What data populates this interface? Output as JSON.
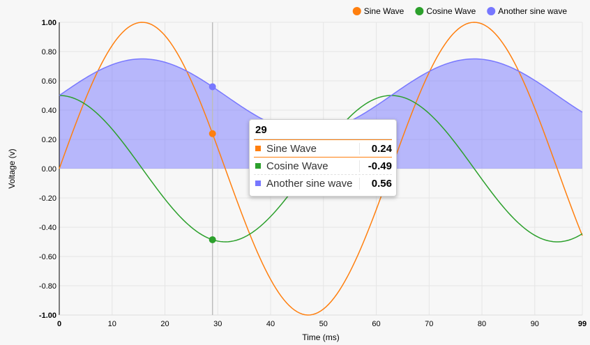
{
  "chart_data": {
    "type": "line",
    "xlabel": "Time (ms)",
    "ylabel": "Voltage (v)",
    "xlim": [
      0,
      99
    ],
    "ylim": [
      -1,
      1
    ],
    "x_ticks": [
      "0",
      "10",
      "20",
      "30",
      "40",
      "50",
      "60",
      "70",
      "80",
      "90",
      "99"
    ],
    "y_ticks": [
      "1.00",
      "0.80",
      "0.60",
      "0.40",
      "0.20",
      "0.00",
      "-0.20",
      "-0.40",
      "-0.60",
      "-0.80",
      "-1.00"
    ],
    "grid": true,
    "legend_position": "top-right",
    "series": [
      {
        "name": "Sine Wave",
        "color": "#ff7f0e",
        "function": "sin(x/10)",
        "area": false
      },
      {
        "name": "Cosine Wave",
        "color": "#2ca02c",
        "function": "0.5*cos(x/10)",
        "area": false
      },
      {
        "name": "Another sine wave",
        "color": "#7777ff",
        "function": "0.25*sin(x/10)+0.5",
        "area": true
      }
    ],
    "hover": {
      "x": 29,
      "header": "29",
      "rows": [
        {
          "name": "Sine Wave",
          "value": "0.24",
          "color": "#ff7f0e"
        },
        {
          "name": "Cosine Wave",
          "value": "-0.49",
          "color": "#2ca02c"
        },
        {
          "name": "Another sine wave",
          "value": "0.56",
          "color": "#7777ff"
        }
      ]
    }
  }
}
